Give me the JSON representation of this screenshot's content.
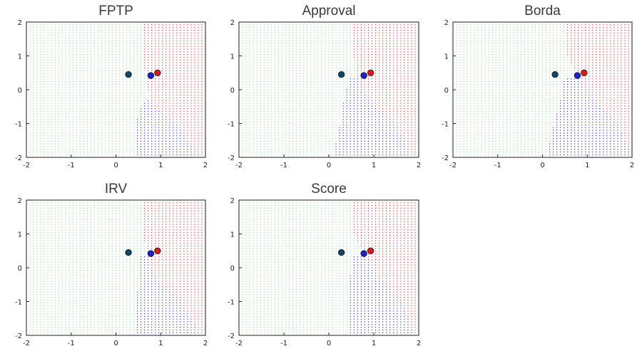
{
  "chart_data": [
    {
      "type": "scatter",
      "title": "FPTP",
      "xlim": [
        -2,
        2
      ],
      "ylim": [
        -2,
        2
      ],
      "xticks": [
        "-2",
        "-1",
        "0",
        "1",
        "2"
      ],
      "yticks": [
        "-2",
        "-1",
        "0",
        "1",
        "2"
      ],
      "grid": false,
      "candidates": [
        {
          "x": 0.28,
          "y": 0.45,
          "color": "#0b4a6f"
        },
        {
          "x": 0.78,
          "y": 0.42,
          "color": "#1f1fd8"
        },
        {
          "x": 0.93,
          "y": 0.5,
          "color": "#e01a1a"
        }
      ],
      "regions": {
        "red_x_boundary": [
          0.62,
          0.6,
          0.7,
          0.85,
          1.35,
          1.9
        ],
        "blue_x_boundary": [
          2.0,
          2.0,
          0.88,
          0.55,
          0.45,
          0.45
        ]
      }
    },
    {
      "type": "scatter",
      "title": "Approval",
      "xlim": [
        -2,
        2
      ],
      "ylim": [
        -2,
        2
      ],
      "xticks": [
        "-2",
        "-1",
        "0",
        "1",
        "2"
      ],
      "yticks": [
        "-2",
        "-1",
        "0",
        "1",
        "2"
      ],
      "grid": false,
      "candidates": [
        {
          "x": 0.28,
          "y": 0.45,
          "color": "#0b4a6f"
        },
        {
          "x": 0.78,
          "y": 0.42,
          "color": "#1f1fd8"
        },
        {
          "x": 0.93,
          "y": 0.5,
          "color": "#e01a1a"
        }
      ],
      "regions": {
        "red_x_boundary": [
          0.55,
          0.55,
          0.7,
          1.05,
          1.5,
          1.85
        ],
        "blue_x_boundary": [
          0.55,
          0.5,
          0.4,
          0.3,
          0.25,
          0.1
        ]
      }
    },
    {
      "type": "scatter",
      "title": "Borda",
      "xlim": [
        -2,
        2
      ],
      "ylim": [
        -2,
        2
      ],
      "xticks": [
        "-2",
        "-1",
        "0",
        "1",
        "2"
      ],
      "yticks": [
        "-2",
        "-1",
        "0",
        "1",
        "2"
      ],
      "grid": false,
      "candidates": [
        {
          "x": 0.28,
          "y": 0.45,
          "color": "#0b4a6f"
        },
        {
          "x": 0.78,
          "y": 0.42,
          "color": "#1f1fd8"
        },
        {
          "x": 0.93,
          "y": 0.5,
          "color": "#e01a1a"
        }
      ],
      "regions": {
        "red_x_boundary": [
          0.48,
          0.55,
          0.95,
          1.3,
          1.7,
          2.0
        ],
        "blue_x_boundary": [
          0.48,
          0.55,
          0.45,
          0.35,
          0.25,
          0.1
        ]
      }
    },
    {
      "type": "scatter",
      "title": "IRV",
      "xlim": [
        -2,
        2
      ],
      "ylim": [
        -2,
        2
      ],
      "xticks": [
        "-2",
        "-1",
        "0",
        "1",
        "2"
      ],
      "yticks": [
        "-2",
        "-1",
        "0",
        "1",
        "2"
      ],
      "grid": false,
      "candidates": [
        {
          "x": 0.28,
          "y": 0.45,
          "color": "#0b4a6f"
        },
        {
          "x": 0.78,
          "y": 0.42,
          "color": "#1f1fd8"
        },
        {
          "x": 0.93,
          "y": 0.5,
          "color": "#e01a1a"
        }
      ],
      "regions": {
        "red_x_boundary": [
          0.58,
          0.58,
          0.8,
          1.0,
          1.5,
          1.9
        ],
        "blue_x_boundary": [
          0.58,
          0.58,
          0.55,
          0.5,
          0.45,
          0.42
        ]
      }
    },
    {
      "type": "scatter",
      "title": "Score",
      "xlim": [
        -2,
        2
      ],
      "ylim": [
        -2,
        2
      ],
      "xticks": [
        "-2",
        "-1",
        "0",
        "1",
        "2"
      ],
      "yticks": [
        "-2",
        "-1",
        "0",
        "1",
        "2"
      ],
      "grid": false,
      "candidates": [
        {
          "x": 0.28,
          "y": 0.45,
          "color": "#0b4a6f"
        },
        {
          "x": 0.78,
          "y": 0.42,
          "color": "#1f1fd8"
        },
        {
          "x": 0.93,
          "y": 0.5,
          "color": "#e01a1a"
        }
      ],
      "regions": {
        "red_x_boundary": [
          0.55,
          0.55,
          0.95,
          1.3,
          1.65,
          1.9
        ],
        "blue_x_boundary": [
          0.55,
          0.55,
          0.5,
          0.45,
          0.42,
          0.4
        ]
      }
    }
  ],
  "colors": {
    "green_region": "#9ee39e",
    "red_region": "#e03a3a",
    "blue_region": "#2a2ae0",
    "frame": "#222222",
    "title": "#3a3a3a"
  }
}
